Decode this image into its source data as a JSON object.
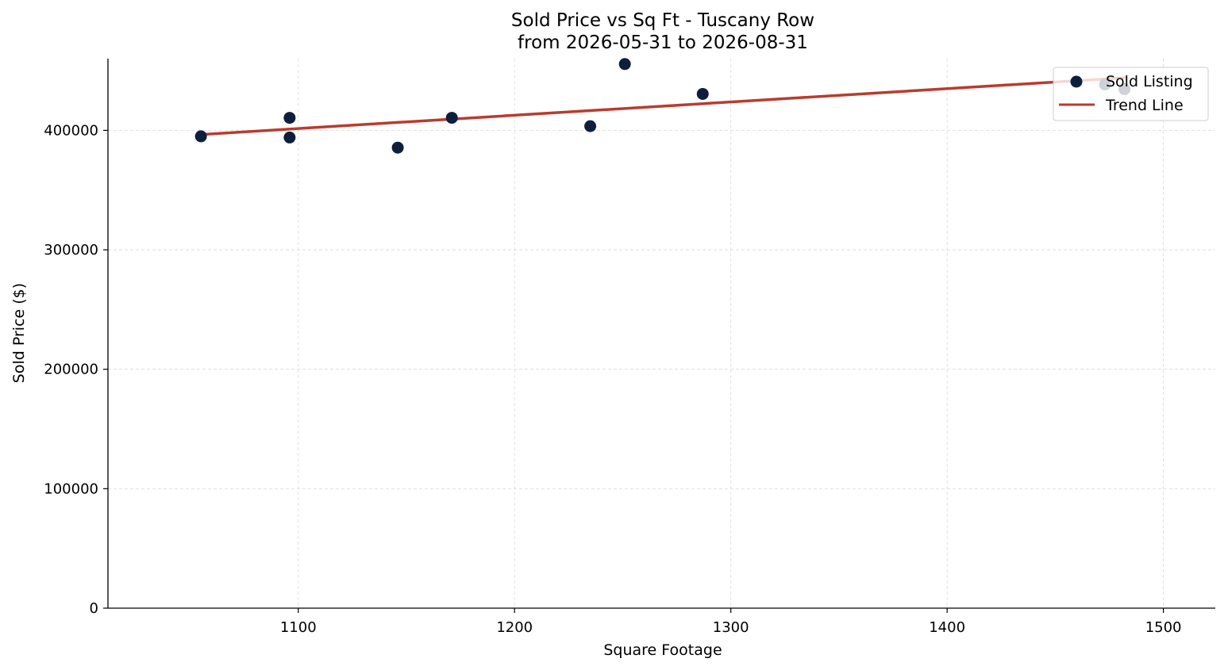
{
  "chart_data": {
    "type": "scatter",
    "title": "Sold Price vs Sq Ft - Tuscany Row",
    "subtitle": "from 2026-05-31 to 2026-08-31",
    "xlabel": "Square Footage",
    "ylabel": "Sold Price ($)",
    "xlim": [
      1012,
      1524
    ],
    "ylim": [
      0,
      460000
    ],
    "xticks": [
      1100,
      1200,
      1300,
      1400,
      1500
    ],
    "yticks": [
      0,
      100000,
      200000,
      300000,
      400000
    ],
    "grid": true,
    "legend_position": "top-right",
    "series": [
      {
        "name": "Sold Listing",
        "kind": "scatter",
        "color": "#0d1f3c",
        "x": [
          1055,
          1096,
          1096,
          1146,
          1171,
          1235,
          1251,
          1287,
          1473,
          1482
        ],
        "y": [
          395000,
          410500,
          394000,
          385500,
          410500,
          403500,
          455500,
          430500,
          438500,
          434500
        ]
      },
      {
        "name": "Trend Line",
        "kind": "line",
        "color": "#b83c30",
        "x": [
          1055,
          1482
        ],
        "y": [
          396500,
          444000
        ]
      }
    ]
  }
}
